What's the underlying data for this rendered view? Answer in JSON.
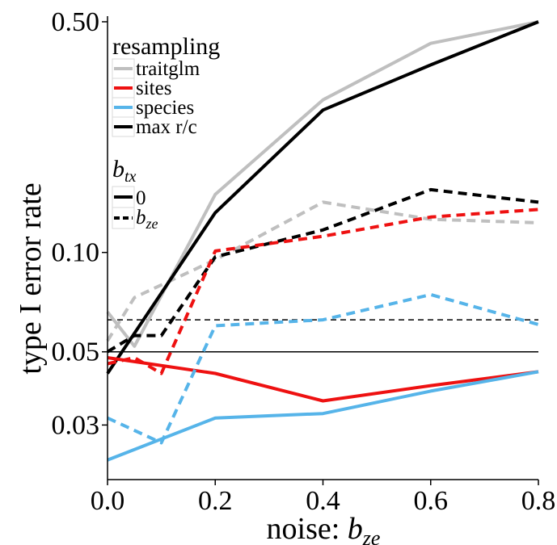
{
  "chart_data": {
    "type": "line",
    "xlabel": "noise: ",
    "xlabel_symbol": "b",
    "xlabel_subscript": "ze",
    "ylabel": "type I error rate",
    "x_ticks": [
      "0.0",
      "0.2",
      "0.4",
      "0.6",
      "0.8"
    ],
    "x_tick_values": [
      0.0,
      0.2,
      0.4,
      0.6,
      0.8
    ],
    "y_ticks": [
      "0.03",
      "0.05",
      "0.10",
      "0.50"
    ],
    "y_tick_values": [
      0.03,
      0.05,
      0.1,
      0.5
    ],
    "y_scale": "log",
    "xlim": [
      0,
      0.8
    ],
    "ylim": [
      0.0205,
      0.52
    ],
    "grid": false,
    "reference_lines": [
      {
        "y": 0.05,
        "style": "solid"
      },
      {
        "y": 0.0625,
        "style": "dashed"
      }
    ],
    "legend": {
      "placement": "top-left",
      "color_title": "resampling",
      "color_items": [
        {
          "label": "traitglm",
          "color": "#bfbfbf"
        },
        {
          "label": "sites",
          "color": "#ee1111"
        },
        {
          "label": "species",
          "color": "#56b4e9"
        },
        {
          "label": "max r/c",
          "color": "#000000"
        }
      ],
      "linetype_title_symbol": "b",
      "linetype_title_subscript": "tx",
      "linetype_items": [
        {
          "label": "0",
          "style": "solid"
        },
        {
          "label_symbol": "b",
          "label_subscript": "ze",
          "style": "dashed"
        }
      ]
    },
    "series": [
      {
        "name": "traitglm",
        "linetype": "0",
        "color": "#bfbfbf",
        "x": [
          0.0,
          0.05,
          0.2,
          0.4,
          0.6,
          0.8
        ],
        "y": [
          0.066,
          0.052,
          0.15,
          0.29,
          0.43,
          0.5
        ]
      },
      {
        "name": "traitglm",
        "linetype": "bze",
        "color": "#bfbfbf",
        "x": [
          0.0,
          0.05,
          0.2,
          0.4,
          0.6,
          0.8
        ],
        "y": [
          0.054,
          0.073,
          0.095,
          0.142,
          0.126,
          0.123
        ]
      },
      {
        "name": "max r/c",
        "linetype": "0",
        "color": "#000000",
        "x": [
          0.0,
          0.2,
          0.4,
          0.6,
          0.8
        ],
        "y": [
          0.043,
          0.132,
          0.27,
          0.37,
          0.5
        ]
      },
      {
        "name": "max r/c",
        "linetype": "bze",
        "color": "#000000",
        "x": [
          0.0,
          0.05,
          0.1,
          0.2,
          0.4,
          0.6,
          0.8
        ],
        "y": [
          0.05,
          0.056,
          0.056,
          0.097,
          0.117,
          0.155,
          0.142
        ]
      },
      {
        "name": "sites",
        "linetype": "0",
        "color": "#ee1111",
        "x": [
          0.0,
          0.2,
          0.4,
          0.6,
          0.8
        ],
        "y": [
          0.048,
          0.043,
          0.0355,
          0.0395,
          0.0435
        ]
      },
      {
        "name": "sites",
        "linetype": "bze",
        "color": "#ee1111",
        "x": [
          0.0,
          0.05,
          0.1,
          0.2,
          0.4,
          0.6,
          0.8
        ],
        "y": [
          0.046,
          0.048,
          0.043,
          0.101,
          0.112,
          0.128,
          0.135
        ]
      },
      {
        "name": "species",
        "linetype": "0",
        "color": "#56b4e9",
        "x": [
          0.0,
          0.2,
          0.4,
          0.6,
          0.8
        ],
        "y": [
          0.0235,
          0.0315,
          0.0325,
          0.038,
          0.0435
        ]
      },
      {
        "name": "species",
        "linetype": "bze",
        "color": "#56b4e9",
        "x": [
          0.0,
          0.1,
          0.2,
          0.4,
          0.6,
          0.8
        ],
        "y": [
          0.0315,
          0.0265,
          0.06,
          0.0625,
          0.0745,
          0.0605
        ]
      }
    ]
  }
}
